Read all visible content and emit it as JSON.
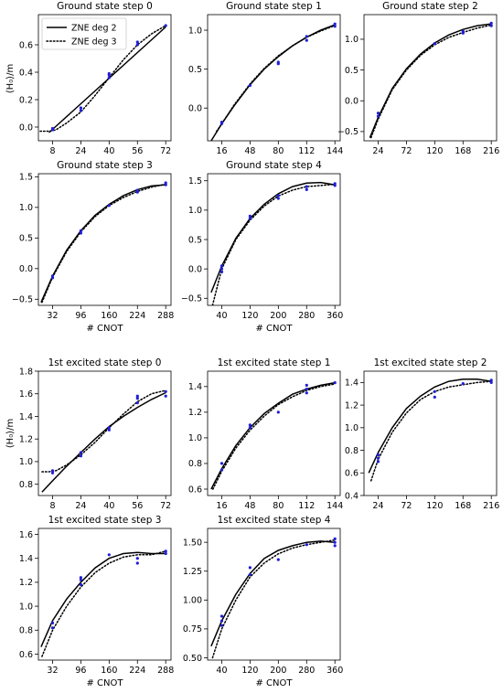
{
  "figure": {
    "legend": {
      "position": "upper-left",
      "entries": [
        {
          "label": "ZNE deg 2",
          "style": "solid"
        },
        {
          "label": "ZNE deg 3",
          "style": "dotted"
        }
      ]
    },
    "xlabel": "# CNOT",
    "ylabel": "⟨H₀⟩/m"
  },
  "chart_data": [
    {
      "type": "line",
      "title": "Ground state step 0",
      "xticks": [
        8,
        24,
        40,
        56,
        72
      ],
      "xlim": [
        0,
        75
      ],
      "yticks": [
        0.0,
        0.2,
        0.4,
        0.6
      ],
      "ytick_labels": [
        "0.0",
        "0.2",
        "0.4",
        "0.6"
      ],
      "ylim": [
        -0.1,
        0.82
      ],
      "series": [
        {
          "name": "ZNE deg 2",
          "style": "solid",
          "x": [
            6,
            12,
            18,
            24,
            30,
            36,
            42,
            48,
            54,
            60,
            66,
            72
          ],
          "y": [
            -0.04,
            0.03,
            0.1,
            0.17,
            0.24,
            0.31,
            0.38,
            0.45,
            0.52,
            0.59,
            0.66,
            0.73
          ]
        },
        {
          "name": "ZNE deg 3",
          "style": "dotted",
          "x": [
            1,
            6,
            10,
            16,
            24,
            32,
            40,
            48,
            56,
            64,
            72
          ],
          "y": [
            -0.03,
            -0.03,
            -0.02,
            0.03,
            0.11,
            0.23,
            0.36,
            0.49,
            0.6,
            0.68,
            0.74
          ]
        }
      ],
      "points": {
        "x": [
          8,
          8,
          24,
          24,
          40,
          40,
          40,
          56,
          56,
          72
        ],
        "y": [
          -0.02,
          -0.01,
          0.12,
          0.14,
          0.36,
          0.38,
          0.39,
          0.6,
          0.62,
          0.74
        ]
      }
    },
    {
      "type": "line",
      "title": "Ground state step 1",
      "xticks": [
        16,
        48,
        80,
        112,
        144
      ],
      "xlim": [
        0,
        150
      ],
      "yticks": [
        0.0,
        0.5,
        1.0
      ],
      "ytick_labels": [
        "0.0",
        "0.5",
        "1.0"
      ],
      "ylim": [
        -0.42,
        1.2
      ],
      "series": [
        {
          "name": "ZNE deg 2",
          "style": "solid",
          "x": [
            4,
            16,
            30,
            48,
            64,
            80,
            96,
            112,
            128,
            144
          ],
          "y": [
            -0.42,
            -0.2,
            0.03,
            0.3,
            0.5,
            0.66,
            0.8,
            0.91,
            1.0,
            1.07
          ]
        },
        {
          "name": "ZNE deg 3",
          "style": "dotted",
          "x": [
            10,
            16,
            30,
            48,
            64,
            80,
            96,
            112,
            128,
            144
          ],
          "y": [
            -0.3,
            -0.2,
            0.04,
            0.31,
            0.51,
            0.67,
            0.8,
            0.91,
            0.99,
            1.06
          ]
        }
      ],
      "points": {
        "x": [
          16,
          16,
          48,
          80,
          80,
          112,
          112,
          144,
          144
        ],
        "y": [
          -0.2,
          -0.18,
          0.29,
          0.57,
          0.59,
          0.87,
          0.92,
          1.05,
          1.08
        ]
      }
    },
    {
      "type": "line",
      "title": "Ground state step 2",
      "xticks": [
        24,
        72,
        120,
        168,
        216
      ],
      "xlim": [
        0,
        225
      ],
      "yticks": [
        -0.5,
        0.0,
        0.5,
        1.0
      ],
      "ytick_labels": [
        "−0.5",
        "0.0",
        "0.5",
        "1.0"
      ],
      "ylim": [
        -0.65,
        1.4
      ],
      "series": [
        {
          "name": "ZNE deg 2",
          "style": "solid",
          "x": [
            10,
            24,
            48,
            72,
            96,
            120,
            144,
            168,
            192,
            216
          ],
          "y": [
            -0.6,
            -0.27,
            0.2,
            0.52,
            0.76,
            0.94,
            1.07,
            1.16,
            1.22,
            1.25
          ]
        },
        {
          "name": "ZNE deg 3",
          "style": "dotted",
          "x": [
            12,
            24,
            48,
            72,
            96,
            120,
            144,
            168,
            192,
            216
          ],
          "y": [
            -0.6,
            -0.3,
            0.18,
            0.5,
            0.74,
            0.91,
            1.03,
            1.11,
            1.18,
            1.23
          ]
        }
      ],
      "points": {
        "x": [
          24,
          24,
          120,
          168,
          168,
          216,
          216
        ],
        "y": [
          -0.2,
          -0.25,
          0.93,
          1.1,
          1.13,
          1.22,
          1.26
        ]
      }
    },
    {
      "type": "line",
      "title": "Ground state step 3",
      "xticks": [
        32,
        96,
        160,
        224,
        288
      ],
      "xlim": [
        0,
        300
      ],
      "yticks": [
        -0.5,
        0.0,
        0.5,
        1.0,
        1.5
      ],
      "ytick_labels": [
        "−0.5",
        "0.0",
        "0.5",
        "1.0",
        "1.5"
      ],
      "ylim": [
        -0.6,
        1.55
      ],
      "series": [
        {
          "name": "ZNE deg 2",
          "style": "solid",
          "x": [
            6,
            32,
            64,
            96,
            128,
            160,
            192,
            224,
            256,
            288
          ],
          "y": [
            -0.55,
            -0.12,
            0.3,
            0.62,
            0.87,
            1.05,
            1.19,
            1.29,
            1.35,
            1.37
          ]
        },
        {
          "name": "ZNE deg 3",
          "style": "dotted",
          "x": [
            8,
            32,
            64,
            96,
            128,
            160,
            192,
            224,
            256,
            288
          ],
          "y": [
            -0.55,
            -0.14,
            0.28,
            0.6,
            0.85,
            1.03,
            1.16,
            1.26,
            1.33,
            1.38
          ]
        }
      ],
      "points": {
        "x": [
          32,
          32,
          96,
          96,
          160,
          224,
          224,
          288,
          288
        ],
        "y": [
          -0.12,
          -0.15,
          0.58,
          0.62,
          1.03,
          1.25,
          1.28,
          1.37,
          1.4
        ]
      }
    },
    {
      "type": "line",
      "title": "Ground state step 4",
      "xticks": [
        40,
        120,
        200,
        280,
        360
      ],
      "xlim": [
        0,
        375
      ],
      "yticks": [
        -0.5,
        0.0,
        0.5,
        1.0,
        1.5
      ],
      "ytick_labels": [
        "−0.5",
        "0.0",
        "0.5",
        "1.0",
        "1.5"
      ],
      "ylim": [
        -0.62,
        1.62
      ],
      "series": [
        {
          "name": "ZNE deg 2",
          "style": "solid",
          "x": [
            10,
            40,
            80,
            120,
            160,
            200,
            240,
            280,
            320,
            340,
            360
          ],
          "y": [
            -0.4,
            0.05,
            0.52,
            0.86,
            1.1,
            1.28,
            1.4,
            1.46,
            1.47,
            1.45,
            1.43
          ]
        },
        {
          "name": "ZNE deg 3",
          "style": "dotted",
          "x": [
            14,
            40,
            80,
            120,
            160,
            200,
            240,
            280,
            320,
            360
          ],
          "y": [
            -0.62,
            0.0,
            0.5,
            0.83,
            1.07,
            1.24,
            1.34,
            1.4,
            1.42,
            1.44
          ]
        }
      ],
      "points": {
        "x": [
          40,
          40,
          40,
          120,
          120,
          200,
          200,
          280,
          280,
          360,
          360
        ],
        "y": [
          0.0,
          0.05,
          -0.05,
          0.86,
          0.9,
          1.2,
          1.25,
          1.35,
          1.4,
          1.42,
          1.45
        ]
      }
    },
    {
      "type": "line",
      "title": "1st excited state step 0",
      "xticks": [
        8,
        24,
        40,
        56,
        72
      ],
      "xlim": [
        0,
        75
      ],
      "yticks": [
        0.8,
        1.0,
        1.2,
        1.4,
        1.6,
        1.8
      ],
      "ytick_labels": [
        "0.8",
        "1.0",
        "1.2",
        "1.4",
        "1.6",
        "1.8"
      ],
      "ylim": [
        0.7,
        1.8
      ],
      "series": [
        {
          "name": "ZNE deg 2",
          "style": "solid",
          "x": [
            2,
            8,
            16,
            24,
            32,
            40,
            48,
            56,
            64,
            72
          ],
          "y": [
            0.73,
            0.83,
            0.96,
            1.08,
            1.2,
            1.31,
            1.4,
            1.48,
            1.55,
            1.61
          ]
        },
        {
          "name": "ZNE deg 3",
          "style": "dotted",
          "x": [
            2,
            6,
            10,
            16,
            24,
            32,
            40,
            48,
            56,
            64,
            72
          ],
          "y": [
            0.91,
            0.91,
            0.92,
            0.97,
            1.06,
            1.17,
            1.3,
            1.42,
            1.53,
            1.6,
            1.63
          ]
        }
      ],
      "points": {
        "x": [
          8,
          8,
          24,
          24,
          40,
          40,
          56,
          56,
          56,
          72,
          72
        ],
        "y": [
          0.9,
          0.92,
          1.05,
          1.08,
          1.28,
          1.3,
          1.52,
          1.56,
          1.58,
          1.58,
          1.62
        ]
      }
    },
    {
      "type": "line",
      "title": "1st excited state step 1",
      "xticks": [
        16,
        48,
        80,
        112,
        144
      ],
      "xlim": [
        0,
        150
      ],
      "yticks": [
        0.6,
        0.8,
        1.0,
        1.2,
        1.4
      ],
      "ytick_labels": [
        "0.6",
        "0.8",
        "1.0",
        "1.2",
        "1.4"
      ],
      "ylim": [
        0.55,
        1.52
      ],
      "series": [
        {
          "name": "ZNE deg 2",
          "style": "solid",
          "x": [
            4,
            16,
            32,
            48,
            64,
            80,
            96,
            112,
            128,
            144
          ],
          "y": [
            0.6,
            0.76,
            0.94,
            1.08,
            1.19,
            1.27,
            1.34,
            1.38,
            1.41,
            1.43
          ]
        },
        {
          "name": "ZNE deg 3",
          "style": "dotted",
          "x": [
            6,
            16,
            32,
            48,
            64,
            80,
            96,
            112,
            128,
            144
          ],
          "y": [
            0.6,
            0.74,
            0.92,
            1.06,
            1.17,
            1.26,
            1.32,
            1.37,
            1.4,
            1.42
          ]
        }
      ],
      "points": {
        "x": [
          16,
          16,
          48,
          48,
          80,
          112,
          112,
          112,
          144
        ],
        "y": [
          0.75,
          0.8,
          1.08,
          1.1,
          1.2,
          1.35,
          1.38,
          1.41,
          1.43
        ]
      }
    },
    {
      "type": "line",
      "title": "1st excited state step 2",
      "xticks": [
        24,
        72,
        120,
        168,
        216
      ],
      "xlim": [
        0,
        225
      ],
      "yticks": [
        0.4,
        0.6,
        0.8,
        1.0,
        1.2,
        1.4
      ],
      "ytick_labels": [
        "0.4",
        "0.6",
        "0.8",
        "1.0",
        "1.2",
        "1.4"
      ],
      "ylim": [
        0.4,
        1.5
      ],
      "series": [
        {
          "name": "ZNE deg 2",
          "style": "solid",
          "x": [
            8,
            24,
            48,
            72,
            96,
            120,
            144,
            168,
            192,
            216
          ],
          "y": [
            0.6,
            0.78,
            1.0,
            1.17,
            1.28,
            1.36,
            1.41,
            1.43,
            1.43,
            1.41
          ]
        },
        {
          "name": "ZNE deg 3",
          "style": "dotted",
          "x": [
            12,
            24,
            48,
            72,
            96,
            120,
            144,
            168,
            192,
            216
          ],
          "y": [
            0.53,
            0.72,
            0.96,
            1.13,
            1.25,
            1.32,
            1.36,
            1.38,
            1.4,
            1.41
          ]
        }
      ],
      "points": {
        "x": [
          24,
          24,
          24,
          120,
          120,
          168,
          216,
          216
        ],
        "y": [
          0.7,
          0.73,
          0.76,
          1.27,
          1.32,
          1.39,
          1.4,
          1.42
        ]
      }
    },
    {
      "type": "line",
      "title": "1st excited state step 3",
      "xticks": [
        32,
        96,
        160,
        224,
        288
      ],
      "xlim": [
        0,
        300
      ],
      "yticks": [
        0.6,
        0.8,
        1.0,
        1.2,
        1.4,
        1.6
      ],
      "ytick_labels": [
        "0.6",
        "0.8",
        "1.0",
        "1.2",
        "1.4",
        "1.6"
      ],
      "ylim": [
        0.55,
        1.65
      ],
      "series": [
        {
          "name": "ZNE deg 2",
          "style": "solid",
          "x": [
            6,
            32,
            64,
            96,
            128,
            160,
            192,
            224,
            256,
            288
          ],
          "y": [
            0.66,
            0.88,
            1.06,
            1.2,
            1.32,
            1.4,
            1.44,
            1.45,
            1.44,
            1.44
          ]
        },
        {
          "name": "ZNE deg 3",
          "style": "dotted",
          "x": [
            8,
            32,
            64,
            96,
            128,
            160,
            192,
            224,
            256,
            288
          ],
          "y": [
            0.58,
            0.8,
            1.0,
            1.16,
            1.28,
            1.36,
            1.41,
            1.43,
            1.43,
            1.46
          ]
        }
      ],
      "points": {
        "x": [
          32,
          32,
          96,
          96,
          96,
          160,
          224,
          224,
          288,
          288
        ],
        "y": [
          0.82,
          0.86,
          1.18,
          1.22,
          1.24,
          1.43,
          1.36,
          1.4,
          1.44,
          1.46
        ]
      }
    },
    {
      "type": "line",
      "title": "1st excited state step 4",
      "xticks": [
        40,
        120,
        200,
        280,
        360
      ],
      "xlim": [
        0,
        375
      ],
      "yticks": [
        0.5,
        0.75,
        1.0,
        1.25,
        1.5
      ],
      "ytick_labels": [
        "0.50",
        "0.75",
        "1.00",
        "1.25",
        "1.50"
      ],
      "ylim": [
        0.48,
        1.62
      ],
      "series": [
        {
          "name": "ZNE deg 2",
          "style": "solid",
          "x": [
            10,
            40,
            80,
            120,
            160,
            200,
            240,
            280,
            320,
            360
          ],
          "y": [
            0.6,
            0.82,
            1.05,
            1.23,
            1.36,
            1.43,
            1.47,
            1.5,
            1.51,
            1.5
          ]
        },
        {
          "name": "ZNE deg 3",
          "style": "dotted",
          "x": [
            14,
            40,
            80,
            120,
            160,
            200,
            240,
            280,
            320,
            360
          ],
          "y": [
            0.5,
            0.75,
            1.0,
            1.2,
            1.32,
            1.4,
            1.45,
            1.48,
            1.5,
            1.52
          ]
        }
      ],
      "points": {
        "x": [
          40,
          40,
          40,
          120,
          120,
          200,
          280,
          360,
          360,
          360
        ],
        "y": [
          0.78,
          0.82,
          0.86,
          1.22,
          1.28,
          1.35,
          1.48,
          1.47,
          1.5,
          1.53
        ]
      }
    }
  ]
}
